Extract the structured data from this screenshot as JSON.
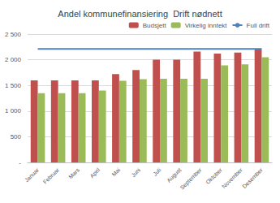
{
  "chart_data": {
    "type": "bar",
    "title": "Andel kommunefinansiering  Drift nødnett",
    "categories": [
      "Januar",
      "Februar",
      "Mars",
      "April",
      "Mai",
      "Juni",
      "Juli",
      "August",
      "September",
      "Oktober",
      "November",
      "Desember"
    ],
    "series": [
      {
        "name": "Budsjett",
        "type": "bar",
        "color": "#c0504d",
        "values": [
          1600,
          1600,
          1600,
          1600,
          1720,
          1800,
          2000,
          2000,
          2160,
          2120,
          2140,
          2200
        ]
      },
      {
        "name": "Virkelig inntekt",
        "type": "bar",
        "color": "#9bbb59",
        "values": [
          1350,
          1350,
          1350,
          1400,
          1590,
          1620,
          1630,
          1630,
          1630,
          1890,
          1910,
          2050
        ]
      },
      {
        "name": "Full drift",
        "type": "line",
        "color": "#4f81bd",
        "values": [
          2210,
          2210,
          2210,
          2210,
          2210,
          2210,
          2210,
          2210,
          2210,
          2210,
          2210,
          2210
        ]
      }
    ],
    "ylim": [
      0,
      2500
    ],
    "yticks": [
      {
        "value": 0,
        "label": "-"
      },
      500,
      {
        "value": 1000,
        "label": "1 000"
      },
      {
        "value": 1500,
        "label": "1 500"
      },
      {
        "value": 2000,
        "label": "2 000"
      },
      {
        "value": 2500,
        "label": "2 500"
      }
    ],
    "grid": true,
    "legend": "top-right"
  }
}
